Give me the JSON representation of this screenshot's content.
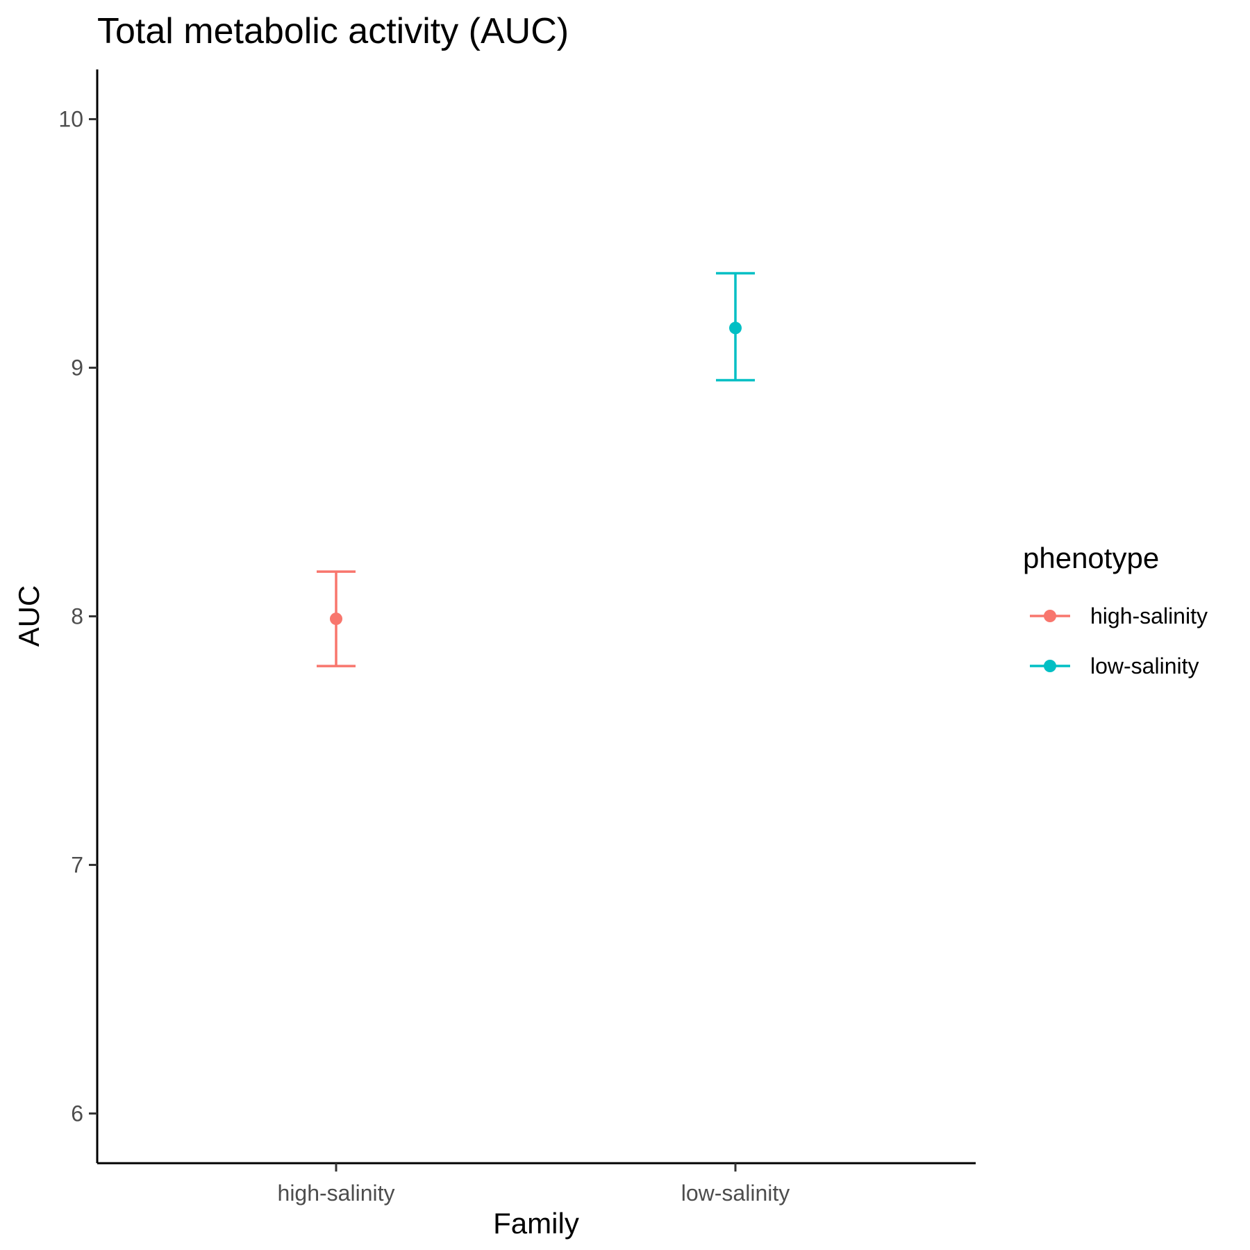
{
  "chart_data": {
    "type": "scatter",
    "title": "Total metabolic activity (AUC)",
    "xlabel": "Family",
    "ylabel": "AUC",
    "categories": [
      "high-salinity",
      "low-salinity"
    ],
    "ylim": [
      5.8,
      10.2
    ],
    "yticks": [
      "6",
      "7",
      "8",
      "9",
      "10"
    ],
    "grid": false,
    "legend": {
      "title": "phenotype",
      "position": "right"
    },
    "series": [
      {
        "name": "high-salinity",
        "color": "#F8766D",
        "x": "high-salinity",
        "value": 7.99,
        "error_low": 7.8,
        "error_high": 8.18
      },
      {
        "name": "low-salinity",
        "color": "#00BFC4",
        "x": "low-salinity",
        "value": 9.16,
        "error_low": 8.95,
        "error_high": 9.38
      }
    ]
  }
}
